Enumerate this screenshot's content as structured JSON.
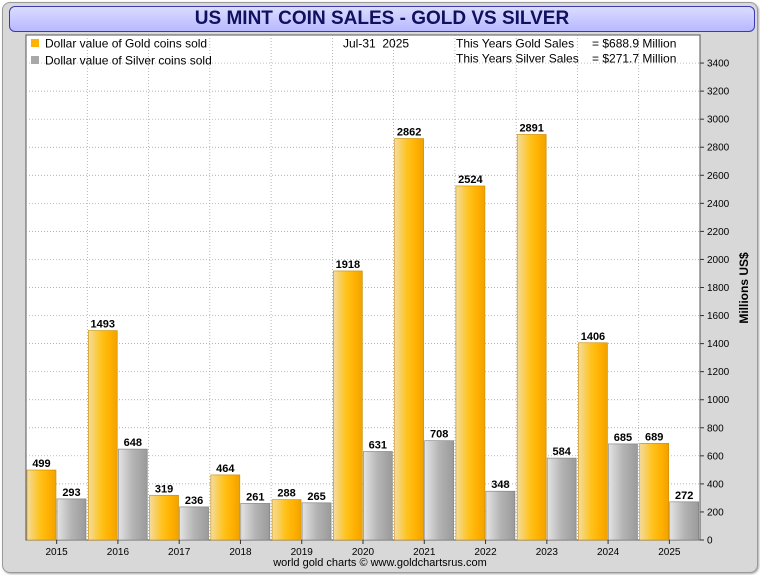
{
  "title": "US MINT COIN SALES - GOLD VS SILVER",
  "date": "Jul-31  2025",
  "summary": {
    "gold_label": "This Years Gold Sales",
    "gold_value": "= $688.9 Million",
    "silver_label": "This Years Silver Sales",
    "silver_value": "= $271.7 Million"
  },
  "credit": "world gold charts © www.goldchartsrus.com",
  "colors": {
    "gold": "#ffb300",
    "silver": "#a8a8a8",
    "title_bg": "#c4c4ff",
    "title_text": "#101060"
  },
  "chart_data": {
    "type": "bar",
    "categories": [
      "2015",
      "2016",
      "2017",
      "2018",
      "2019",
      "2020",
      "2021",
      "2022",
      "2023",
      "2024",
      "2025"
    ],
    "series": [
      {
        "name": "Dollar value of Gold coins sold",
        "values": [
          499,
          1493,
          319,
          464,
          288,
          1918,
          2862,
          2524,
          2891,
          1406,
          689
        ]
      },
      {
        "name": "Dollar value of Silver coins sold",
        "values": [
          293,
          648,
          236,
          261,
          265,
          631,
          708,
          348,
          584,
          685,
          272
        ]
      }
    ],
    "ylabel": "Millions US$",
    "ylim": [
      0,
      3600
    ],
    "yticks": [
      0,
      200,
      400,
      600,
      800,
      1000,
      1200,
      1400,
      1600,
      1800,
      2000,
      2200,
      2400,
      2600,
      2800,
      3000,
      3200,
      3400
    ],
    "grid": true,
    "legend_position": "top-left",
    "axis_side": "right"
  }
}
